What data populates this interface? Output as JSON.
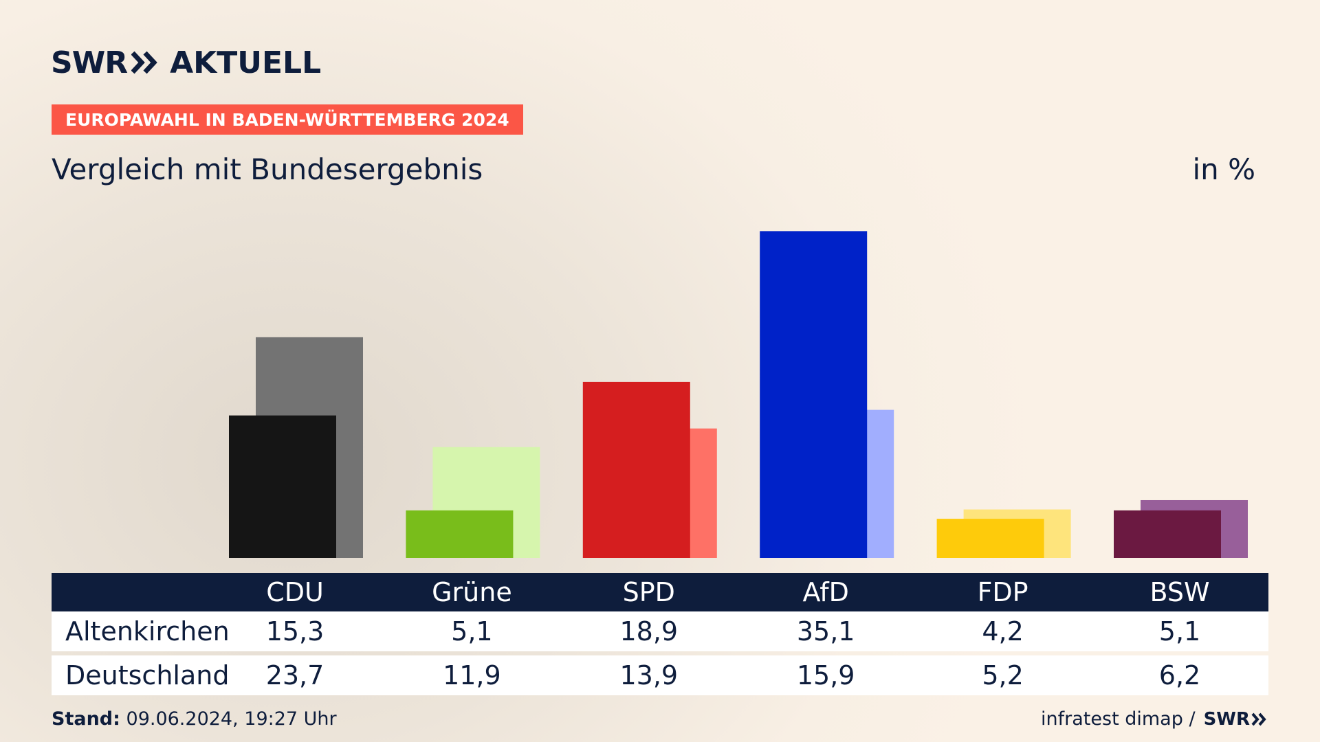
{
  "brand": {
    "name": "SWR",
    "product": "AKTUELL"
  },
  "kicker": "EUROPAWAHL IN BADEN-WÜRTTEMBERG 2024",
  "subtitle": "Vergleich mit Bundesergebnis",
  "unit": "in %",
  "footer": {
    "stand_label": "Stand:",
    "stand_value": "09.06.2024, 19:27 Uhr",
    "source": "infratest dimap /",
    "source_brand": "SWR"
  },
  "chart_data": {
    "type": "bar",
    "categories": [
      "CDU",
      "Grüne",
      "SPD",
      "AfD",
      "FDP",
      "BSW"
    ],
    "series": [
      {
        "name": "Altenkirchen",
        "values": [
          15.3,
          5.1,
          18.9,
          35.1,
          4.2,
          5.1
        ]
      },
      {
        "name": "Deutschland",
        "values": [
          23.7,
          11.9,
          13.9,
          15.9,
          5.2,
          6.2
        ]
      }
    ],
    "colors": {
      "Altenkirchen": [
        "#151515",
        "#79bd1b",
        "#d51e1f",
        "#0022c8",
        "#fecb0b",
        "#6b1941"
      ],
      "Deutschland": [
        "#737373",
        "#d6f5ad",
        "#fe7166",
        "#a1aefe",
        "#fee47c",
        "#985f9a"
      ]
    },
    "ylim": [
      0,
      40
    ],
    "grid": false,
    "legend": "none"
  }
}
